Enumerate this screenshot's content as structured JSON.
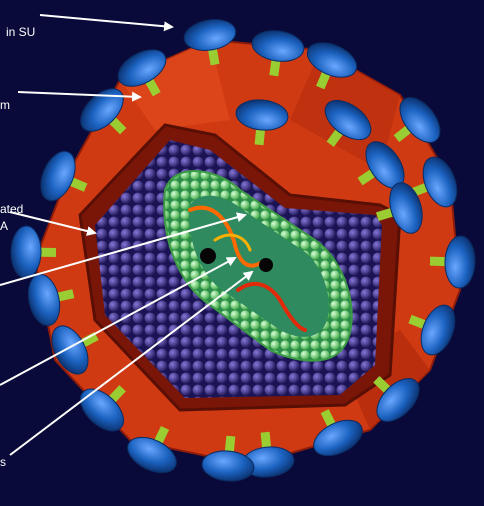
{
  "labels": {
    "glycoprotein_su": "in SU",
    "transmembrane": "m",
    "matrix_rotated": "ated",
    "matrix_rotated_2": "A",
    "edge_1": "s"
  },
  "colors": {
    "background": "#0a0a3a",
    "envelope": "#d43c12",
    "envelope_edge": "#8f1c0a",
    "capsid_bead": "#3c2f86",
    "capsid_shell": "#8ee28e",
    "capsid_core": "#2f8a5f",
    "knob": "#1c63c1",
    "stalk": "#9acd32",
    "rna": "#ff6a00",
    "enzyme": "#050505",
    "arrow": "#ffffff"
  }
}
